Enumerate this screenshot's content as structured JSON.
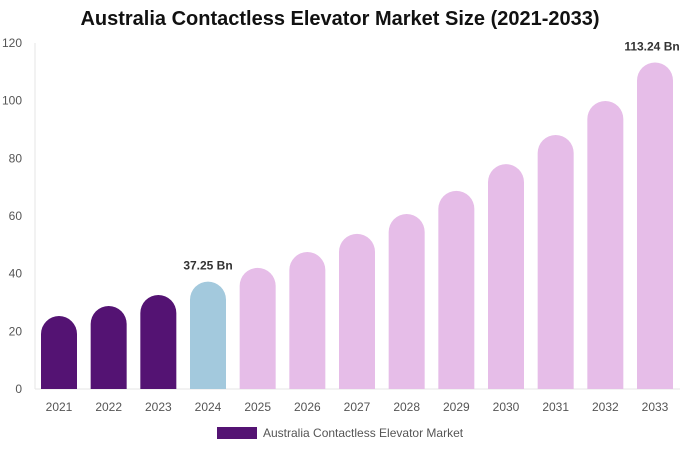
{
  "chart_data": {
    "type": "bar",
    "title": "Australia Contactless Elevator Market Size (2021-2033)",
    "categories": [
      "2021",
      "2022",
      "2023",
      "2024",
      "2025",
      "2026",
      "2027",
      "2028",
      "2029",
      "2030",
      "2031",
      "2032",
      "2033"
    ],
    "series": [
      {
        "name": "Australia Contactless Elevator Market",
        "values": [
          25.3,
          28.8,
          32.6,
          37.25,
          42.0,
          47.5,
          53.8,
          60.7,
          68.7,
          78.0,
          88.1,
          99.9,
          113.24
        ]
      }
    ],
    "bar_colors": [
      "#541373",
      "#541373",
      "#541373",
      "#a3c9dd",
      "#e6bde8",
      "#e6bde8",
      "#e6bde8",
      "#e6bde8",
      "#e6bde8",
      "#e6bde8",
      "#e6bde8",
      "#e6bde8",
      "#e6bde8"
    ],
    "data_labels": {
      "3": "37.25 Bn",
      "12": "113.24 Bn"
    },
    "yticks": [
      0,
      20,
      40,
      60,
      80,
      100,
      120
    ],
    "ylim": [
      0,
      120
    ],
    "xlabel": "",
    "ylabel": "",
    "grid": false,
    "legend": {
      "position": "bottom",
      "label": "Australia Contactless Elevator Market",
      "color": "#541373"
    }
  }
}
